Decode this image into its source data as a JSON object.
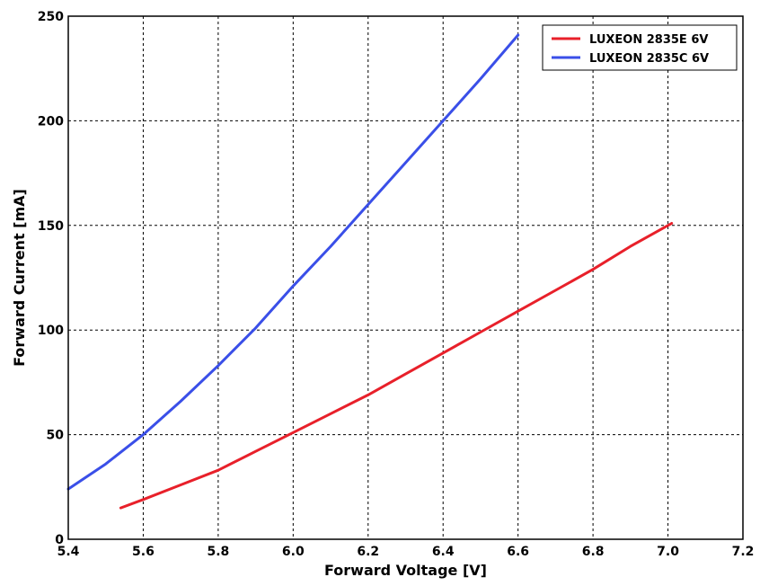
{
  "chart_data": {
    "type": "line",
    "title": "",
    "xlabel": "Forward Voltage [V]",
    "ylabel": "Forward Current [mA]",
    "xlim": [
      5.4,
      7.2
    ],
    "ylim": [
      0,
      250
    ],
    "xticks": [
      "5.4",
      "5.6",
      "5.8",
      "6.0",
      "6.2",
      "6.4",
      "6.6",
      "6.8",
      "7.0",
      "7.2"
    ],
    "yticks": [
      "0",
      "50",
      "100",
      "150",
      "200",
      "250"
    ],
    "grid": true,
    "legend_position": "top-right",
    "series": [
      {
        "name": "LUXEON 2835E 6V",
        "color": "#e8202a",
        "x": [
          5.54,
          5.6,
          5.7,
          5.8,
          5.9,
          6.0,
          6.1,
          6.2,
          6.3,
          6.4,
          6.5,
          6.6,
          6.7,
          6.8,
          6.9,
          7.01
        ],
        "y": [
          15,
          19,
          26,
          33,
          42,
          51,
          60,
          69,
          79,
          89,
          99,
          109,
          119,
          129,
          140,
          151
        ]
      },
      {
        "name": "LUXEON 2835C 6V",
        "color": "#3a4fe8",
        "x": [
          5.4,
          5.5,
          5.6,
          5.7,
          5.8,
          5.9,
          6.0,
          6.1,
          6.2,
          6.3,
          6.4,
          6.5,
          6.6
        ],
        "y": [
          24,
          36,
          50,
          66,
          83,
          101,
          121,
          140,
          160,
          180,
          200,
          220,
          241
        ]
      }
    ]
  }
}
